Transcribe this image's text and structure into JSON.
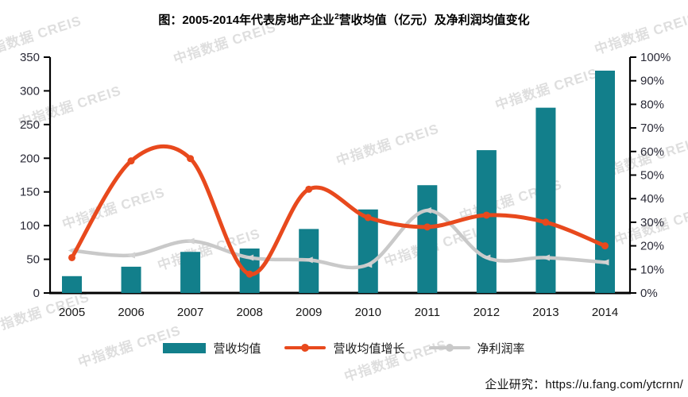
{
  "title": {
    "prefix": "图：2005-2014年代表房地产企业",
    "sup": "2",
    "suffix": "营收均值（亿元）及净利润均值变化"
  },
  "watermark": {
    "text": "中指数据 CREIS"
  },
  "source": {
    "label": "企业研究：",
    "url": "https://u.fang.com/ytcrnn/"
  },
  "chart_data": {
    "type": "combo",
    "categories": [
      "2005",
      "2006",
      "2007",
      "2008",
      "2009",
      "2010",
      "2011",
      "2012",
      "2013",
      "2014"
    ],
    "series": [
      {
        "name": "营收均值",
        "type": "bar",
        "axis": "left",
        "unit": "亿元",
        "color": "#127f8b",
        "values": [
          25,
          39,
          61,
          66,
          95,
          124,
          160,
          212,
          275,
          330
        ]
      },
      {
        "name": "营收均值增长",
        "type": "line",
        "axis": "right",
        "unit": "%",
        "color": "#e8491d",
        "values": [
          15,
          56,
          57,
          8,
          44,
          32,
          28,
          33,
          30,
          20
        ]
      },
      {
        "name": "净利润率",
        "type": "line",
        "axis": "right",
        "unit": "%",
        "color": "#c9c9c9",
        "values": [
          18,
          16,
          22,
          15,
          14,
          12,
          35,
          15,
          15,
          13
        ]
      }
    ],
    "left_axis": {
      "min": 0,
      "max": 350,
      "step": 50,
      "tick_labels": [
        "0",
        "50",
        "100",
        "150",
        "200",
        "250",
        "300",
        "350"
      ]
    },
    "right_axis": {
      "min": 0,
      "max": 100,
      "step": 10,
      "tick_labels": [
        "0%",
        "10%",
        "20%",
        "30%",
        "40%",
        "50%",
        "60%",
        "70%",
        "80%",
        "90%",
        "100%"
      ]
    },
    "grid": false,
    "legend_position": "bottom"
  }
}
